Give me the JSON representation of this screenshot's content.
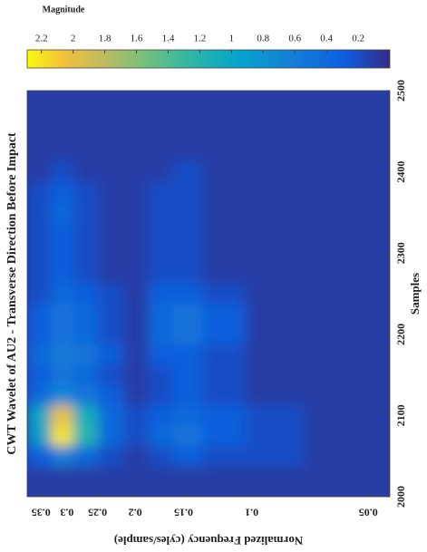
{
  "chart_data": {
    "type": "heatmap",
    "title": "CWT Wavelet of AU2 - Transverse Direction Before Impact",
    "x_label": "Samples",
    "y_label": "Normalized Frequency (cyles/sample)",
    "colorbar_label": "Magnitude",
    "x": [
      2000,
      2025,
      2050,
      2075,
      2100,
      2125,
      2150,
      2175,
      2200,
      2225,
      2250,
      2275,
      2300,
      2325,
      2350,
      2375,
      2400,
      2425,
      2450,
      2475,
      2500
    ],
    "y": [
      0.35,
      0.31,
      0.27,
      0.23,
      0.2,
      0.17,
      0.15,
      0.12,
      0.09,
      0.06
    ],
    "z": [
      [
        0.1,
        0.1,
        0.3,
        0.9,
        1.0,
        0.4,
        0.3,
        0.4,
        0.3,
        0.3,
        0.2,
        0.2,
        0.2,
        0.2,
        0.2,
        0.2,
        0.1,
        0.1,
        0.1,
        0.1,
        0.1
      ],
      [
        0.1,
        0.1,
        0.6,
        2.2,
        2.0,
        0.7,
        0.5,
        0.6,
        0.5,
        0.5,
        0.4,
        0.3,
        0.3,
        0.3,
        0.4,
        0.3,
        0.2,
        0.1,
        0.1,
        0.1,
        0.1
      ],
      [
        0.1,
        0.1,
        0.4,
        1.2,
        1.1,
        0.5,
        0.4,
        0.5,
        0.4,
        0.4,
        0.3,
        0.2,
        0.2,
        0.2,
        0.2,
        0.2,
        0.1,
        0.1,
        0.1,
        0.1,
        0.1
      ],
      [
        0.1,
        0.1,
        0.2,
        0.4,
        0.4,
        0.3,
        0.2,
        0.3,
        0.2,
        0.2,
        0.2,
        0.1,
        0.1,
        0.1,
        0.1,
        0.1,
        0.1,
        0.1,
        0.1,
        0.1,
        0.1
      ],
      [
        0.1,
        0.1,
        0.1,
        0.2,
        0.2,
        0.1,
        0.1,
        0.1,
        0.1,
        0.1,
        0.1,
        0.1,
        0.1,
        0.1,
        0.1,
        0.1,
        0.1,
        0.1,
        0.1,
        0.1,
        0.1
      ],
      [
        0.1,
        0.1,
        0.2,
        0.4,
        0.3,
        0.2,
        0.2,
        0.3,
        0.4,
        0.4,
        0.3,
        0.2,
        0.2,
        0.2,
        0.2,
        0.2,
        0.1,
        0.1,
        0.1,
        0.1,
        0.1
      ],
      [
        0.1,
        0.1,
        0.3,
        0.5,
        0.4,
        0.3,
        0.3,
        0.3,
        0.5,
        0.5,
        0.3,
        0.2,
        0.2,
        0.2,
        0.2,
        0.2,
        0.2,
        0.1,
        0.1,
        0.1,
        0.1
      ],
      [
        0.1,
        0.1,
        0.2,
        0.3,
        0.3,
        0.2,
        0.2,
        0.2,
        0.3,
        0.3,
        0.2,
        0.1,
        0.1,
        0.1,
        0.1,
        0.1,
        0.1,
        0.1,
        0.1,
        0.1,
        0.1
      ],
      [
        0.1,
        0.1,
        0.2,
        0.2,
        0.2,
        0.1,
        0.1,
        0.1,
        0.1,
        0.1,
        0.1,
        0.1,
        0.1,
        0.1,
        0.1,
        0.1,
        0.1,
        0.1,
        0.1,
        0.1,
        0.1
      ],
      [
        0.1,
        0.1,
        0.1,
        0.1,
        0.1,
        0.1,
        0.1,
        0.1,
        0.1,
        0.1,
        0.1,
        0.1,
        0.1,
        0.1,
        0.1,
        0.1,
        0.1,
        0.1,
        0.1,
        0.1,
        0.1
      ]
    ],
    "xlim": [
      2000,
      2500
    ],
    "xticks": [
      2000,
      2100,
      2200,
      2300,
      2400,
      2500
    ],
    "ylim": [
      0.044,
      0.38
    ],
    "yticks": [
      0.05,
      0.1,
      0.15,
      0.2,
      0.25,
      0.3,
      0.35
    ],
    "y_scale": "log",
    "clim": [
      0,
      2.29
    ],
    "cticks": [
      0.2,
      0.4,
      0.6,
      0.8,
      1,
      1.2,
      1.4,
      1.6,
      1.8,
      2,
      2.2
    ],
    "colormap": "parula"
  }
}
